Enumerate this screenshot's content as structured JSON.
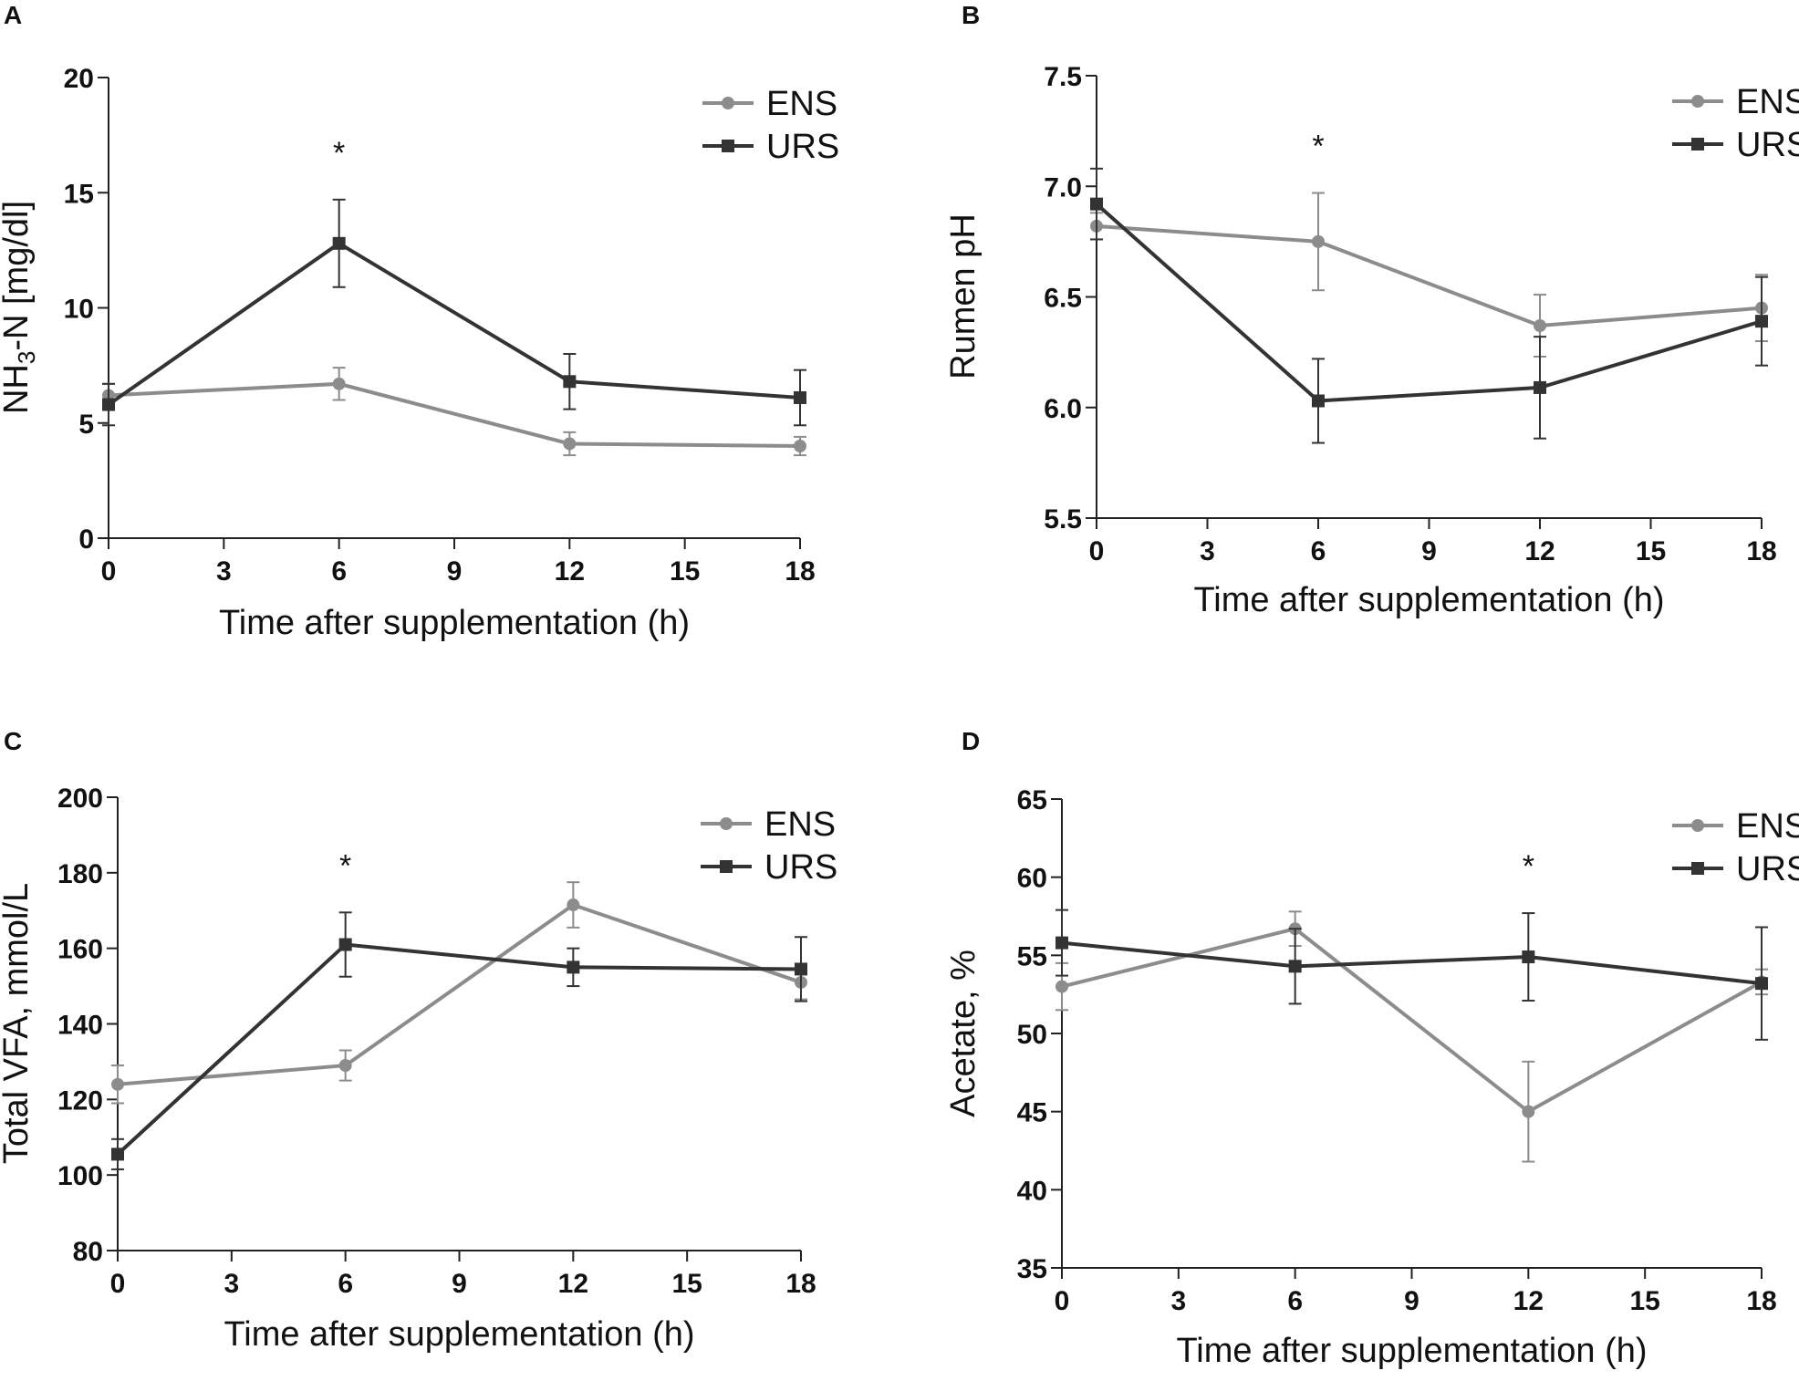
{
  "figure": {
    "panels": [
      {
        "letter": "A",
        "chart_data": {
          "type": "line",
          "title": "",
          "xlabel": "Time after supplementation (h)",
          "ylabel_parts": [
            "NH",
            "3",
            "-N [mg/dl]"
          ],
          "x": [
            0,
            6,
            12,
            18
          ],
          "xticks": [
            0,
            3,
            6,
            9,
            12,
            15,
            18
          ],
          "xlim": [
            0,
            18
          ],
          "yticks": [
            0,
            5,
            10,
            15,
            20
          ],
          "ylim": [
            0,
            20
          ],
          "series": [
            {
              "name": "ENS",
              "marker": "circle",
              "color": "#8c8c8c",
              "values": [
                6.2,
                6.7,
                4.1,
                4.0
              ],
              "errors": [
                0.5,
                0.7,
                0.5,
                0.4
              ]
            },
            {
              "name": "URS",
              "marker": "square",
              "color": "#333333",
              "values": [
                5.8,
                12.8,
                6.8,
                6.1
              ],
              "errors": [
                0.9,
                1.9,
                1.2,
                1.2
              ]
            }
          ],
          "significance": [
            {
              "x": 6,
              "label": "*"
            }
          ],
          "legend": "top-right"
        }
      },
      {
        "letter": "B",
        "chart_data": {
          "type": "line",
          "title": "",
          "xlabel": "Time after supplementation (h)",
          "ylabel_parts": [
            "Rumen pH"
          ],
          "x": [
            0,
            6,
            12,
            18
          ],
          "xticks": [
            0,
            3,
            6,
            9,
            12,
            15,
            18
          ],
          "xlim": [
            0,
            18
          ],
          "yticks": [
            "5.5",
            "6.0",
            "6.5",
            "7.0",
            "7.5"
          ],
          "ylim": [
            5.5,
            7.5
          ],
          "series": [
            {
              "name": "ENS",
              "marker": "circle",
              "color": "#8c8c8c",
              "values": [
                6.82,
                6.75,
                6.37,
                6.45
              ],
              "errors": [
                0.06,
                0.22,
                0.14,
                0.15
              ]
            },
            {
              "name": "URS",
              "marker": "square",
              "color": "#333333",
              "values": [
                6.92,
                6.03,
                6.09,
                6.39
              ],
              "errors": [
                0.16,
                0.19,
                0.23,
                0.2
              ]
            }
          ],
          "significance": [
            {
              "x": 6,
              "label": "*"
            }
          ],
          "legend": "top-right"
        }
      },
      {
        "letter": "C",
        "chart_data": {
          "type": "line",
          "title": "",
          "xlabel": "Time after supplementation (h)",
          "ylabel_parts": [
            "Total VFA, mmol/L"
          ],
          "x": [
            0,
            6,
            12,
            18
          ],
          "xticks": [
            0,
            3,
            6,
            9,
            12,
            15,
            18
          ],
          "xlim": [
            0,
            18
          ],
          "yticks": [
            80,
            100,
            120,
            140,
            160,
            180,
            200
          ],
          "ylim": [
            80,
            200
          ],
          "series": [
            {
              "name": "ENS",
              "marker": "circle",
              "color": "#8c8c8c",
              "values": [
                124,
                129,
                171.5,
                151
              ],
              "errors": [
                5,
                4,
                6,
                4.5
              ]
            },
            {
              "name": "URS",
              "marker": "square",
              "color": "#333333",
              "values": [
                105.5,
                161,
                155,
                154.5
              ],
              "errors": [
                4,
                8.5,
                5,
                8.5
              ]
            }
          ],
          "significance": [
            {
              "x": 6,
              "label": "*"
            }
          ],
          "legend": "top-right"
        }
      },
      {
        "letter": "D",
        "chart_data": {
          "type": "line",
          "title": "",
          "xlabel": "Time after supplementation (h)",
          "ylabel_parts": [
            "Acetate, %"
          ],
          "x": [
            0,
            6,
            12,
            18
          ],
          "xticks": [
            0,
            3,
            6,
            9,
            12,
            15,
            18
          ],
          "xlim": [
            0,
            18
          ],
          "yticks": [
            35,
            40,
            45,
            50,
            55,
            60,
            65
          ],
          "ylim": [
            35,
            65
          ],
          "series": [
            {
              "name": "ENS",
              "marker": "circle",
              "color": "#8c8c8c",
              "values": [
                53,
                56.7,
                45,
                53.3
              ],
              "errors": [
                1.5,
                1.1,
                3.2,
                0.8
              ]
            },
            {
              "name": "URS",
              "marker": "square",
              "color": "#333333",
              "values": [
                55.8,
                54.3,
                54.9,
                53.2
              ],
              "errors": [
                2.1,
                2.4,
                2.8,
                3.6
              ]
            }
          ],
          "significance": [
            {
              "x": 12,
              "label": "*"
            }
          ],
          "legend": "top-right"
        }
      }
    ]
  }
}
